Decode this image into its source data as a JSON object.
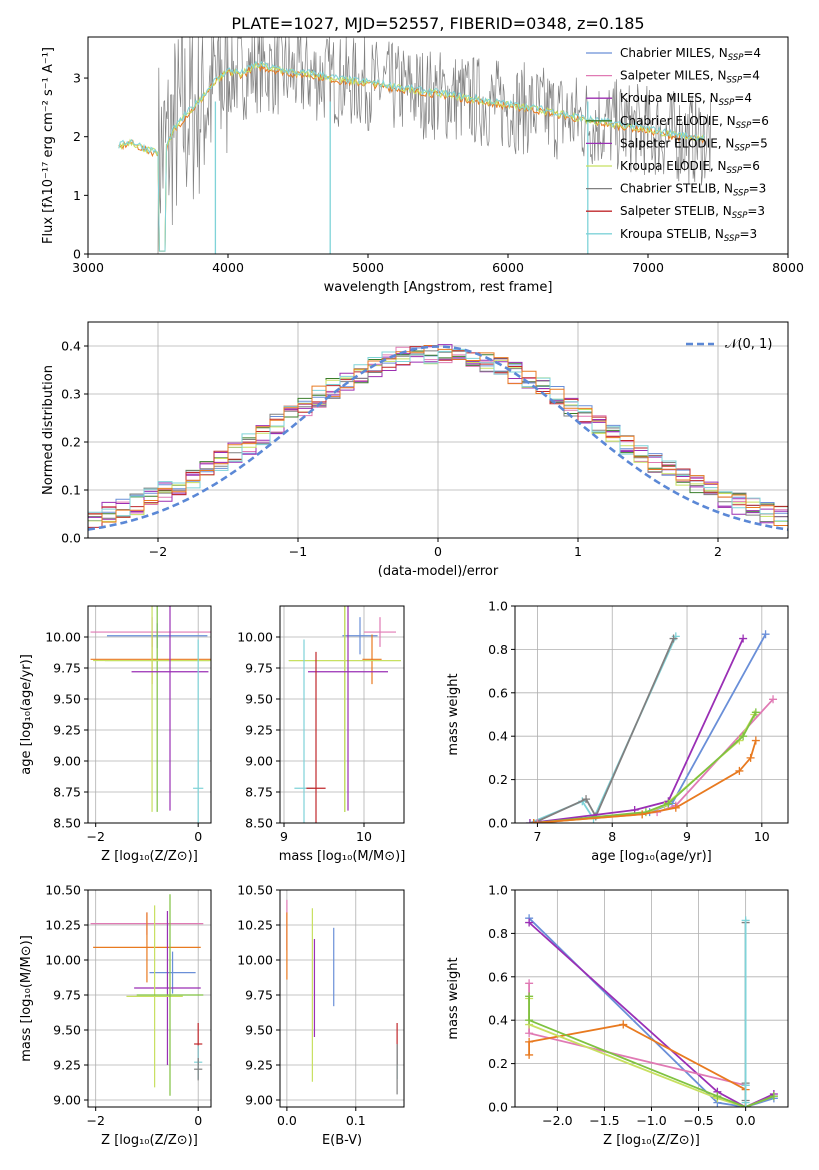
{
  "figure_title": "PLATE=1027, MJD=52557, FIBERID=0348, z=0.185",
  "colors": {
    "Chabrier MILES": "#6a8fd8",
    "Salpeter MILES": "#e07ab4",
    "Kroupa MILES": "#9c2fb0",
    "Chabrier ELODIE": "#3a7d2a",
    "Salpeter ELODIE": "#9a2fb5",
    "Kroupa ELODIE": "#c8e060",
    "Chabrier STELIB": "#808080",
    "Salpeter STELIB": "#c0282c",
    "Kroupa STELIB": "#7fd3d8",
    "fit_orange": "#e87a20",
    "fit_green": "#7fc241",
    "gauss": "#5b88d6"
  },
  "chart_data": [
    {
      "id": "spectrum",
      "type": "line",
      "title": "PLATE=1027, MJD=52557, FIBERID=0348, z=0.185",
      "xlabel": "wavelength [Angstrom, rest frame]",
      "ylabel": "Flux [fλ10⁻¹⁷ erg cm⁻² s⁻¹ A⁻¹]",
      "xlim": [
        3000,
        8000
      ],
      "ylim": [
        0,
        3.7
      ],
      "xticks": [
        "3000",
        "4000",
        "5000",
        "6000",
        "7000",
        "8000"
      ],
      "yticks": [
        "0",
        "1",
        "2",
        "3"
      ],
      "grid": false,
      "legend_position": "upper right",
      "legend": [
        {
          "label": "Chabrier MILES, N",
          "sub": "SSP",
          "tail": "=4"
        },
        {
          "label": "Salpeter MILES, N",
          "sub": "SSP",
          "tail": "=4"
        },
        {
          "label": "Kroupa MILES, N",
          "sub": "SSP",
          "tail": "=4"
        },
        {
          "label": "Chabrier ELODIE, N",
          "sub": "SSP",
          "tail": "=6"
        },
        {
          "label": "Salpeter ELODIE, N",
          "sub": "SSP",
          "tail": "=5"
        },
        {
          "label": "Kroupa ELODIE, N",
          "sub": "SSP",
          "tail": "=6"
        },
        {
          "label": "Chabrier STELIB, N",
          "sub": "SSP",
          "tail": "=3"
        },
        {
          "label": "Salpeter STELIB, N",
          "sub": "SSP",
          "tail": "=3"
        },
        {
          "label": "Kroupa STELIB, N",
          "sub": "SSP",
          "tail": "=3"
        }
      ],
      "model_x": [
        3220,
        3300,
        3400,
        3500,
        3550,
        3600,
        3700,
        3800,
        3900,
        4000,
        4100,
        4200,
        4300,
        4400,
        4500,
        4600,
        4700,
        4800,
        4900,
        5000,
        5200,
        5400,
        5600,
        5800,
        6000,
        6200,
        6400,
        6600,
        6800,
        7000,
        7200,
        7400
      ],
      "model_y": [
        1.8,
        1.9,
        1.78,
        1.7,
        1.72,
        2.05,
        2.35,
        2.6,
        2.9,
        3.1,
        3.05,
        3.2,
        3.15,
        3.1,
        3.05,
        3.05,
        3.0,
        2.95,
        2.92,
        2.9,
        2.82,
        2.75,
        2.68,
        2.6,
        2.52,
        2.45,
        2.35,
        2.25,
        2.18,
        2.1,
        2.0,
        1.95
      ]
    },
    {
      "id": "residuals",
      "type": "line",
      "xlabel": "(data-model)/error",
      "ylabel": "Normed distribution",
      "xlim": [
        -2.5,
        2.5
      ],
      "ylim": [
        0,
        0.45
      ],
      "xticks": [
        "−2",
        "−1",
        "0",
        "1",
        "2"
      ],
      "yticks": [
        "0.0",
        "0.1",
        "0.2",
        "0.3",
        "0.4"
      ],
      "grid": true,
      "legend_position": "upper right",
      "legend_label": "𝒩(0, 1)",
      "gaussian": {
        "mean": 0,
        "sigma": 1
      }
    },
    {
      "id": "age_vs_Z",
      "type": "scatter",
      "xlabel": "Z [log₁₀(Z/Z⊙)]",
      "ylabel": "age  [log₁₀(age/yr)]",
      "xlim": [
        -2.15,
        0.25
      ],
      "ylim": [
        8.5,
        10.25
      ],
      "xticks": [
        "−2",
        "0"
      ],
      "yticks": [
        "8.50",
        "8.75",
        "9.00",
        "9.25",
        "9.50",
        "9.75",
        "10.00"
      ],
      "grid": true,
      "points": [
        {
          "x": -0.9,
          "y": 10.04,
          "xerr": 1.2,
          "yerr": 0.12,
          "color": "#e07ab4"
        },
        {
          "x": -0.8,
          "y": 10.01,
          "xerr": 0.98,
          "yerr": 0.1,
          "color": "#6a8fd8"
        },
        {
          "x": -0.9,
          "y": 9.82,
          "xerr": 1.2,
          "yerr": 0.2,
          "color": "#e87a20"
        },
        {
          "x": -0.8,
          "y": 9.81,
          "xerr": 1.02,
          "yerr": 1.22,
          "color": "#7fc241"
        },
        {
          "x": -0.9,
          "y": 9.81,
          "xerr": 1.15,
          "yerr": 1.22,
          "color": "#c8e060"
        },
        {
          "x": -0.55,
          "y": 9.72,
          "xerr": 0.75,
          "yerr": 1.12,
          "color": "#9a2fb5"
        },
        {
          "x": 0.0,
          "y": 8.78,
          "xerr": 0.1,
          "yerr": 1.2,
          "color": "#7fd3d8"
        }
      ]
    },
    {
      "id": "age_vs_mass",
      "type": "scatter",
      "xlabel": "mass [log₁₀(M/M⊙)]",
      "xlim": [
        8.95,
        10.5
      ],
      "ylim": [
        8.5,
        10.25
      ],
      "xticks": [
        "9",
        "10"
      ],
      "yticks": [
        "8.50",
        "8.75",
        "9.00",
        "9.25",
        "9.50",
        "9.75",
        "10.00"
      ],
      "grid": true,
      "points": [
        {
          "x": 10.2,
          "y": 10.04,
          "xerr": 0.2,
          "yerr": 0.12,
          "color": "#e07ab4"
        },
        {
          "x": 9.95,
          "y": 10.01,
          "xerr": 0.22,
          "yerr": 0.15,
          "color": "#6a8fd8"
        },
        {
          "x": 10.1,
          "y": 9.82,
          "xerr": 0.12,
          "yerr": 0.2,
          "color": "#e87a20"
        },
        {
          "x": 9.76,
          "y": 9.81,
          "xerr": 0.7,
          "yerr": 1.22,
          "color": "#7fc241"
        },
        {
          "x": 9.76,
          "y": 9.81,
          "xerr": 0.7,
          "yerr": 1.22,
          "color": "#c8e060"
        },
        {
          "x": 9.8,
          "y": 9.72,
          "xerr": 0.5,
          "yerr": 1.12,
          "color": "#9a2fb5"
        },
        {
          "x": 9.25,
          "y": 8.78,
          "xerr": 0.12,
          "yerr": 1.2,
          "color": "#7fd3d8"
        },
        {
          "x": 9.4,
          "y": 8.78,
          "xerr": 0.12,
          "yerr": 1.1,
          "color": "#c0282c"
        }
      ]
    },
    {
      "id": "weight_vs_age",
      "type": "line",
      "xlabel": "age  [log₁₀(age/yr)]",
      "ylabel": "mass weight",
      "xlim": [
        6.7,
        10.35
      ],
      "ylim": [
        0,
        1
      ],
      "xticks": [
        "7",
        "8",
        "9",
        "10"
      ],
      "yticks": [
        "0.0",
        "0.2",
        "0.4",
        "0.6",
        "0.8",
        "1.0"
      ],
      "grid": true,
      "series": [
        {
          "color": "#7fd3d8",
          "x": [
            6.9,
            7.6,
            7.75,
            8.85
          ],
          "y": [
            0.0,
            0.1,
            0.02,
            0.86
          ]
        },
        {
          "color": "#808080",
          "x": [
            6.95,
            7.65,
            7.78,
            8.82
          ],
          "y": [
            0.0,
            0.11,
            0.03,
            0.85
          ]
        },
        {
          "color": "#9a2fb5",
          "x": [
            6.9,
            8.3,
            8.75,
            9.75
          ],
          "y": [
            0.0,
            0.06,
            0.1,
            0.85
          ]
        },
        {
          "color": "#6a8fd8",
          "x": [
            6.95,
            8.5,
            8.8,
            10.05
          ],
          "y": [
            0.0,
            0.05,
            0.09,
            0.87
          ]
        },
        {
          "color": "#e07ab4",
          "x": [
            7.0,
            8.6,
            8.85,
            10.15
          ],
          "y": [
            0.0,
            0.05,
            0.08,
            0.57
          ]
        },
        {
          "color": "#c8e060",
          "x": [
            6.95,
            8.4,
            8.7,
            9.7,
            9.9
          ],
          "y": [
            0.0,
            0.04,
            0.08,
            0.38,
            0.5
          ]
        },
        {
          "color": "#7fc241",
          "x": [
            6.95,
            8.45,
            8.75,
            9.75,
            9.92
          ],
          "y": [
            0.0,
            0.05,
            0.09,
            0.4,
            0.51
          ]
        },
        {
          "color": "#e87a20",
          "x": [
            6.95,
            8.4,
            8.85,
            9.7,
            9.85,
            9.92
          ],
          "y": [
            0.0,
            0.04,
            0.07,
            0.24,
            0.3,
            0.38
          ]
        }
      ]
    },
    {
      "id": "mass_vs_Z",
      "type": "scatter",
      "xlabel": "Z [log₁₀(Z/Z⊙)]",
      "ylabel": "mass [log₁₀(M/M⊙)]",
      "xlim": [
        -2.15,
        0.25
      ],
      "ylim": [
        8.95,
        10.5
      ],
      "xticks": [
        "−2",
        "0"
      ],
      "yticks": [
        "9.00",
        "9.25",
        "9.50",
        "9.75",
        "10.00",
        "10.25",
        "10.50"
      ],
      "grid": true,
      "points": [
        {
          "x": -1.0,
          "y": 10.26,
          "xerr": 1.1,
          "yerr": 0.08,
          "color": "#e07ab4"
        },
        {
          "x": -1.0,
          "y": 10.09,
          "xerr": 1.05,
          "yerr": 0.25,
          "color": "#e87a20"
        },
        {
          "x": -0.5,
          "y": 9.91,
          "xerr": 0.45,
          "yerr": 0.15,
          "color": "#6a8fd8"
        },
        {
          "x": -0.6,
          "y": 9.8,
          "xerr": 0.65,
          "yerr": 0.55,
          "color": "#9a2fb5"
        },
        {
          "x": -0.85,
          "y": 9.74,
          "xerr": 0.55,
          "yerr": 0.65,
          "color": "#c8e060"
        },
        {
          "x": -0.55,
          "y": 9.75,
          "xerr": 0.65,
          "yerr": 0.72,
          "color": "#7fc241"
        },
        {
          "x": 0.0,
          "y": 9.4,
          "xerr": 0.08,
          "yerr": 0.15,
          "color": "#c0282c"
        },
        {
          "x": 0.0,
          "y": 9.27,
          "xerr": 0.08,
          "yerr": 0.12,
          "color": "#7fd3d8"
        },
        {
          "x": 0.0,
          "y": 9.22,
          "xerr": 0.08,
          "yerr": 0.08,
          "color": "#808080"
        }
      ]
    },
    {
      "id": "mass_vs_ebv",
      "type": "scatter",
      "xlabel": "E(B-V)",
      "xlim": [
        -0.01,
        0.17
      ],
      "ylim": [
        8.95,
        10.5
      ],
      "xticks": [
        "0.0",
        "0.1"
      ],
      "yticks": [
        "9.00",
        "9.25",
        "9.50",
        "9.75",
        "10.00",
        "10.25",
        "10.50"
      ],
      "grid": true,
      "points": [
        {
          "x": 0.0,
          "y": 10.25,
          "yerr": 0.18,
          "color": "#e07ab4"
        },
        {
          "x": 0.0,
          "y": 10.1,
          "yerr": 0.24,
          "color": "#e87a20"
        },
        {
          "x": 0.068,
          "y": 9.95,
          "yerr": 0.28,
          "color": "#6a8fd8"
        },
        {
          "x": 0.04,
          "y": 9.8,
          "yerr": 0.35,
          "color": "#9a2fb5"
        },
        {
          "x": 0.037,
          "y": 9.75,
          "yerr": 0.62,
          "color": "#c8e060"
        },
        {
          "x": 0.16,
          "y": 9.4,
          "yerr": 0.15,
          "color": "#c0282c"
        },
        {
          "x": 0.16,
          "y": 9.27,
          "yerr": 0.12,
          "color": "#7fd3d8"
        },
        {
          "x": 0.16,
          "y": 9.22,
          "yerr": 0.18,
          "color": "#808080"
        }
      ]
    },
    {
      "id": "weight_vs_Z",
      "type": "line",
      "xlabel": "Z [log₁₀(Z/Z⊙)]",
      "ylabel": "mass weight",
      "xlim": [
        -2.45,
        0.45
      ],
      "ylim": [
        0,
        1
      ],
      "xticks": [
        "−2.0",
        "−1.5",
        "−1.0",
        "−0.5",
        "0.0"
      ],
      "yticks": [
        "0.0",
        "0.2",
        "0.4",
        "0.6",
        "0.8",
        "1.0"
      ],
      "grid": true,
      "series": [
        {
          "color": "#6a8fd8",
          "x": [
            -2.3,
            -0.3,
            0.0,
            0.3
          ],
          "y": [
            0.87,
            0.02,
            0.0,
            0.04
          ]
        },
        {
          "color": "#9a2fb5",
          "x": [
            -2.3,
            -0.3,
            0.0,
            0.3
          ],
          "y": [
            0.85,
            0.07,
            0.0,
            0.06
          ]
        },
        {
          "color": "#e07ab4",
          "x": [
            -2.3,
            -2.3,
            0.0,
            0.0
          ],
          "y": [
            0.57,
            0.34,
            0.1,
            0.0
          ]
        },
        {
          "color": "#e87a20",
          "x": [
            -2.3,
            -2.3,
            -1.3,
            0.0,
            0.0
          ],
          "y": [
            0.24,
            0.3,
            0.38,
            0.08,
            0.0
          ]
        },
        {
          "color": "#c8e060",
          "x": [
            -2.3,
            -2.3,
            -0.3,
            0.0,
            0.3
          ],
          "y": [
            0.5,
            0.38,
            0.04,
            0.0,
            0.05
          ]
        },
        {
          "color": "#7fc241",
          "x": [
            -2.3,
            -2.3,
            -0.3,
            0.0,
            0.3
          ],
          "y": [
            0.51,
            0.4,
            0.05,
            0.0,
            0.05
          ]
        },
        {
          "color": "#808080",
          "x": [
            0.0,
            0.0,
            0.0
          ],
          "y": [
            0.85,
            0.11,
            0.03
          ]
        },
        {
          "color": "#7fd3d8",
          "x": [
            0.0,
            0.0,
            0.0
          ],
          "y": [
            0.86,
            0.1,
            0.02
          ]
        }
      ]
    }
  ]
}
